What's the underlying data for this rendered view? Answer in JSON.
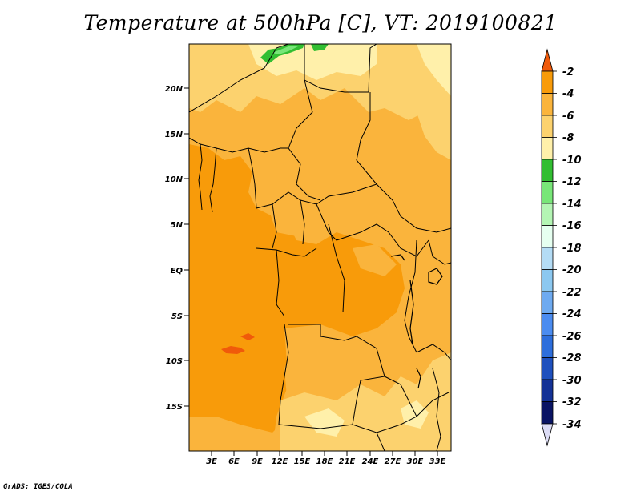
{
  "title": "Temperature at 500hPa [C], VT: 2019100821",
  "credit": "GrADS: IGES/COLA",
  "map": {
    "lat_ticks": [
      "20N",
      "15N",
      "10N",
      "5N",
      "EQ",
      "5S",
      "10S",
      "15S"
    ],
    "lon_ticks": [
      "3E",
      "6E",
      "9E",
      "12E",
      "15E",
      "18E",
      "21E",
      "24E",
      "27E",
      "30E",
      "33E"
    ]
  },
  "colorbar": {
    "labels": [
      "-2",
      "-4",
      "-6",
      "-8",
      "-10",
      "-12",
      "-14",
      "-16",
      "-18",
      "-20",
      "-22",
      "-24",
      "-26",
      "-28",
      "-30",
      "-32",
      "-34"
    ],
    "colors": [
      "#f05a0a",
      "#f89b0a",
      "#fab43c",
      "#fcd26e",
      "#fff0aa",
      "#32be32",
      "#78e678",
      "#b4f5b4",
      "#e6fff0",
      "#b4dcf5",
      "#8cc8f0",
      "#6eaaf0",
      "#4b8cf0",
      "#2d6edc",
      "#1e50be",
      "#143296",
      "#0a1464",
      "#dcdcf5"
    ]
  }
}
